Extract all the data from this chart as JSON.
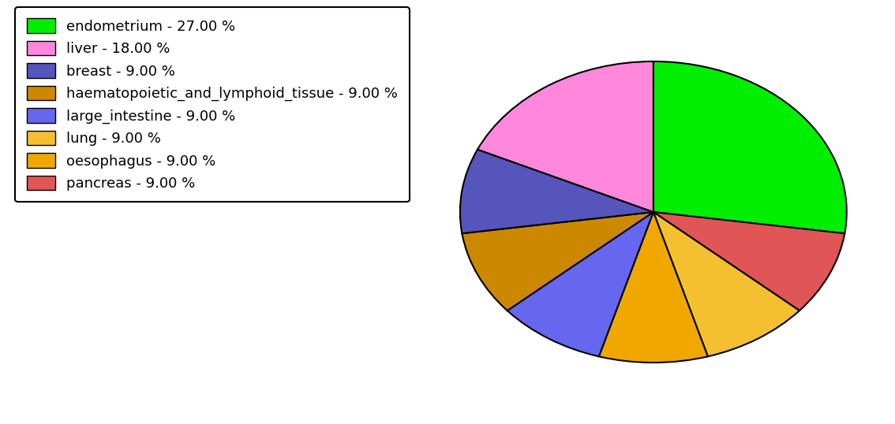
{
  "labels": [
    "endometrium",
    "pancreas",
    "lung",
    "oesophagus",
    "large_intestine",
    "haematopoietic_and_lymphoid_tissue",
    "breast",
    "liver"
  ],
  "values": [
    27,
    9,
    9,
    9,
    9,
    9,
    9,
    18
  ],
  "colors": [
    "#00ee00",
    "#e05555",
    "#f5c030",
    "#f0a800",
    "#6666ee",
    "#cc8800",
    "#5555bb",
    "#ff88dd"
  ],
  "legend_labels": [
    "endometrium - 27.00 %",
    "liver - 18.00 %",
    "breast - 9.00 %",
    "haematopoietic_and_lymphoid_tissue - 9.00 %",
    "large_intestine - 9.00 %",
    "lung - 9.00 %",
    "oesophagus - 9.00 %",
    "pancreas - 9.00 %"
  ],
  "legend_colors": [
    "#00ee00",
    "#ff88dd",
    "#5555bb",
    "#cc8800",
    "#6666ee",
    "#f5c030",
    "#f0a800",
    "#e05555"
  ],
  "background_color": "#ffffff",
  "figsize": [
    11.34,
    5.38
  ],
  "dpi": 100
}
